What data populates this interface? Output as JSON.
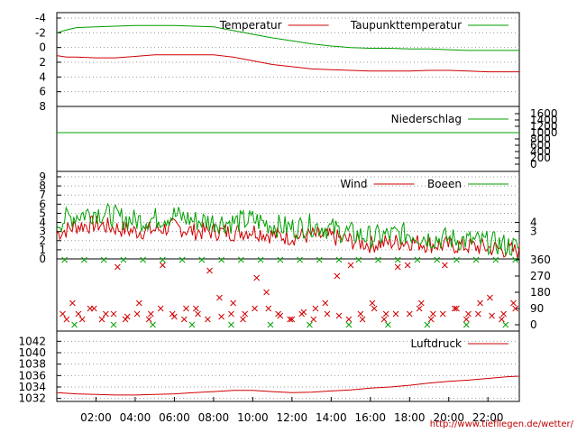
{
  "colors": {
    "red": "#d00000",
    "green": "#00a000",
    "grid": "#999999",
    "axis": "#000000"
  },
  "source_url": "http://www.tiefliegen.de/wetter/",
  "chart_data": [
    {
      "type": "line",
      "panel": "temperature",
      "ylim": [
        -4,
        8
      ],
      "y_ticks": [
        "8",
        "6",
        "4",
        "2",
        "0",
        "-2",
        "-4"
      ],
      "series": [
        {
          "name": "Temperatur",
          "color": "red",
          "x": [
            0,
            0.5,
            1,
            2,
            3,
            4,
            5,
            6,
            7,
            8,
            9,
            10,
            11,
            12,
            13,
            14,
            15,
            16,
            17,
            18,
            19,
            20,
            21,
            22,
            23,
            23.6
          ],
          "values": [
            1.1,
            1.3,
            1.3,
            1.4,
            1.4,
            1.2,
            1.0,
            1.0,
            1.0,
            1.0,
            1.3,
            1.8,
            2.3,
            2.6,
            2.9,
            3.0,
            3.1,
            3.2,
            3.2,
            3.2,
            3.1,
            3.1,
            3.2,
            3.3,
            3.3,
            3.3
          ]
        },
        {
          "name": "Taupunkttemperatur",
          "color": "green",
          "x": [
            0,
            0.5,
            1,
            2,
            3,
            4,
            5,
            6,
            7,
            8,
            9,
            10,
            11,
            12,
            13,
            14,
            15,
            16,
            17,
            18,
            19,
            20,
            21,
            22,
            23,
            23.6
          ],
          "values": [
            -2.0,
            -2.4,
            -2.7,
            -2.8,
            -2.9,
            -3.0,
            -3.0,
            -3.0,
            -2.9,
            -2.8,
            -2.3,
            -1.8,
            -1.3,
            -0.9,
            -0.5,
            -0.2,
            0.0,
            0.1,
            0.1,
            0.2,
            0.2,
            0.3,
            0.4,
            0.4,
            0.4,
            0.4
          ]
        }
      ]
    },
    {
      "type": "line",
      "panel": "precipitation",
      "ylim": [
        0,
        1600
      ],
      "y_ticks_right": [
        "1600",
        "1400",
        "1200",
        "1000",
        "800",
        "600",
        "400",
        "200",
        "0"
      ],
      "series": [
        {
          "name": "Niederschlag",
          "color": "green",
          "x": [
            0,
            23.6
          ],
          "values": [
            1000,
            1000
          ]
        }
      ]
    },
    {
      "type": "line",
      "panel": "wind",
      "ylim": [
        0,
        9
      ],
      "y_ticks": [
        "9",
        "8",
        "7",
        "6",
        "5",
        "4",
        "3",
        "2",
        "1",
        "0"
      ],
      "y_ticks_right": [
        "4",
        "3"
      ],
      "series": [
        {
          "name": "Wind",
          "color": "red",
          "x": [
            0,
            1,
            2,
            3,
            4,
            5,
            6,
            7,
            8,
            9,
            10,
            11,
            12,
            13,
            14,
            15,
            16,
            17,
            18,
            19,
            20,
            21,
            22,
            23,
            23.6
          ],
          "values": [
            2.8,
            3.6,
            3.8,
            3.4,
            3.0,
            3.2,
            3.5,
            3.0,
            3.0,
            2.9,
            3.1,
            2.6,
            2.4,
            2.6,
            2.4,
            2.0,
            1.6,
            1.8,
            1.9,
            1.6,
            1.5,
            1.4,
            1.2,
            1.0,
            0.8
          ]
        },
        {
          "name": "Boeen",
          "color": "green",
          "x": [
            0,
            1,
            2,
            3,
            4,
            5,
            6,
            7,
            8,
            9,
            10,
            11,
            12,
            13,
            14,
            15,
            16,
            17,
            18,
            19,
            20,
            21,
            22,
            23,
            23.6
          ],
          "values": [
            4.0,
            4.8,
            5.2,
            4.6,
            4.2,
            4.4,
            4.8,
            4.2,
            4.1,
            4.0,
            4.3,
            3.7,
            3.4,
            3.7,
            3.3,
            2.8,
            2.4,
            2.6,
            2.8,
            2.3,
            2.2,
            2.0,
            1.8,
            1.5,
            1.2
          ]
        }
      ]
    },
    {
      "type": "scatter",
      "panel": "wind-direction",
      "ylim": [
        0,
        360
      ],
      "y_ticks_right": [
        "360",
        "270",
        "180",
        "90",
        "0"
      ],
      "series": [
        {
          "name": "",
          "color": "red",
          "marker": "x",
          "x": [
            0.3,
            0.8,
            1.3,
            1.9,
            2.5,
            3.1,
            3.6,
            4.2,
            4.8,
            5.4,
            6.0,
            6.6,
            7.2,
            7.8,
            8.4,
            9.0,
            9.6,
            10.2,
            10.8,
            11.4,
            12.0,
            12.6,
            13.2,
            13.8,
            14.4,
            15.0,
            15.6,
            16.2,
            16.8,
            17.4,
            18.0,
            18.6,
            19.2,
            19.8,
            20.4,
            21.0,
            21.6,
            22.2,
            22.8,
            23.4
          ],
          "values": [
            60,
            120,
            30,
            90,
            60,
            320,
            45,
            120,
            60,
            330,
            45,
            90,
            60,
            300,
            45,
            120,
            60,
            260,
            90,
            50,
            30,
            70,
            90,
            60,
            50,
            330,
            30,
            90,
            60,
            320,
            60,
            120,
            60,
            330,
            90,
            60,
            120,
            50,
            60,
            90
          ]
        },
        {
          "name": "",
          "color": "red",
          "marker": "x",
          "x": [
            0.5,
            1.1,
            1.7,
            2.3,
            2.9,
            3.5,
            4.1,
            4.7,
            5.3,
            5.9,
            6.5,
            7.1,
            7.7,
            8.3,
            8.9,
            9.5,
            10.1,
            10.7,
            11.3,
            11.9,
            12.5,
            13.1,
            13.7,
            14.3,
            14.9,
            15.5,
            16.1,
            16.7,
            17.3,
            17.9,
            18.5,
            19.1,
            19.7,
            20.3,
            20.9,
            21.5,
            22.1,
            22.7,
            23.3
          ],
          "values": [
            30,
            60,
            90,
            30,
            60,
            30,
            60,
            30,
            90,
            60,
            30,
            90,
            30,
            150,
            60,
            30,
            90,
            180,
            60,
            30,
            60,
            30,
            120,
            270,
            30,
            60,
            120,
            30,
            60,
            330,
            90,
            30,
            60,
            90,
            30,
            60,
            150,
            30,
            120
          ]
        },
        {
          "name": "",
          "color": "green",
          "marker": "x",
          "x": [
            0.4,
            1.4,
            2.4,
            3.4,
            4.4,
            5.4,
            6.4,
            7.4,
            8.4,
            9.4,
            10.4,
            11.4,
            12.4,
            13.4,
            14.4,
            15.4,
            16.4,
            17.4,
            18.4,
            19.4,
            20.4,
            21.4,
            22.4,
            23.4
          ],
          "values": [
            360,
            360,
            360,
            360,
            360,
            360,
            360,
            360,
            360,
            360,
            360,
            360,
            360,
            360,
            360,
            360,
            360,
            360,
            360,
            360,
            360,
            360,
            360,
            360
          ]
        },
        {
          "name": "",
          "color": "green",
          "marker": "x",
          "x": [
            0.9,
            2.9,
            4.9,
            6.9,
            8.9,
            10.9,
            12.9,
            14.9,
            16.9,
            18.9,
            20.9,
            22.9
          ],
          "values": [
            0,
            0,
            0,
            0,
            0,
            0,
            0,
            0,
            0,
            0,
            0,
            0
          ]
        }
      ]
    },
    {
      "type": "line",
      "panel": "pressure",
      "ylim": [
        1031,
        1043
      ],
      "y_ticks": [
        "1042",
        "1040",
        "1038",
        "1036",
        "1034",
        "1032"
      ],
      "x_tick_labels": [
        "02:00",
        "04:00",
        "06:00",
        "08:00",
        "10:00",
        "12:00",
        "14:00",
        "16:00",
        "18:00",
        "20:00",
        "22:00"
      ],
      "x_tick_values": [
        2,
        4,
        6,
        8,
        10,
        12,
        14,
        16,
        18,
        20,
        22
      ],
      "xlim": [
        0,
        23.6
      ],
      "series": [
        {
          "name": "Luftdruck",
          "color": "red",
          "x": [
            0,
            1,
            2,
            3,
            4,
            5,
            6,
            7,
            8,
            9,
            10,
            11,
            12,
            13,
            14,
            15,
            16,
            17,
            18,
            19,
            20,
            21,
            22,
            23,
            23.6
          ],
          "values": [
            1033.0,
            1032.8,
            1032.7,
            1032.6,
            1032.6,
            1032.7,
            1032.8,
            1033.0,
            1033.2,
            1033.4,
            1033.4,
            1033.2,
            1033.0,
            1033.1,
            1033.3,
            1033.5,
            1033.8,
            1034.0,
            1034.3,
            1034.7,
            1035.0,
            1035.2,
            1035.5,
            1035.8,
            1035.9
          ]
        }
      ]
    }
  ]
}
